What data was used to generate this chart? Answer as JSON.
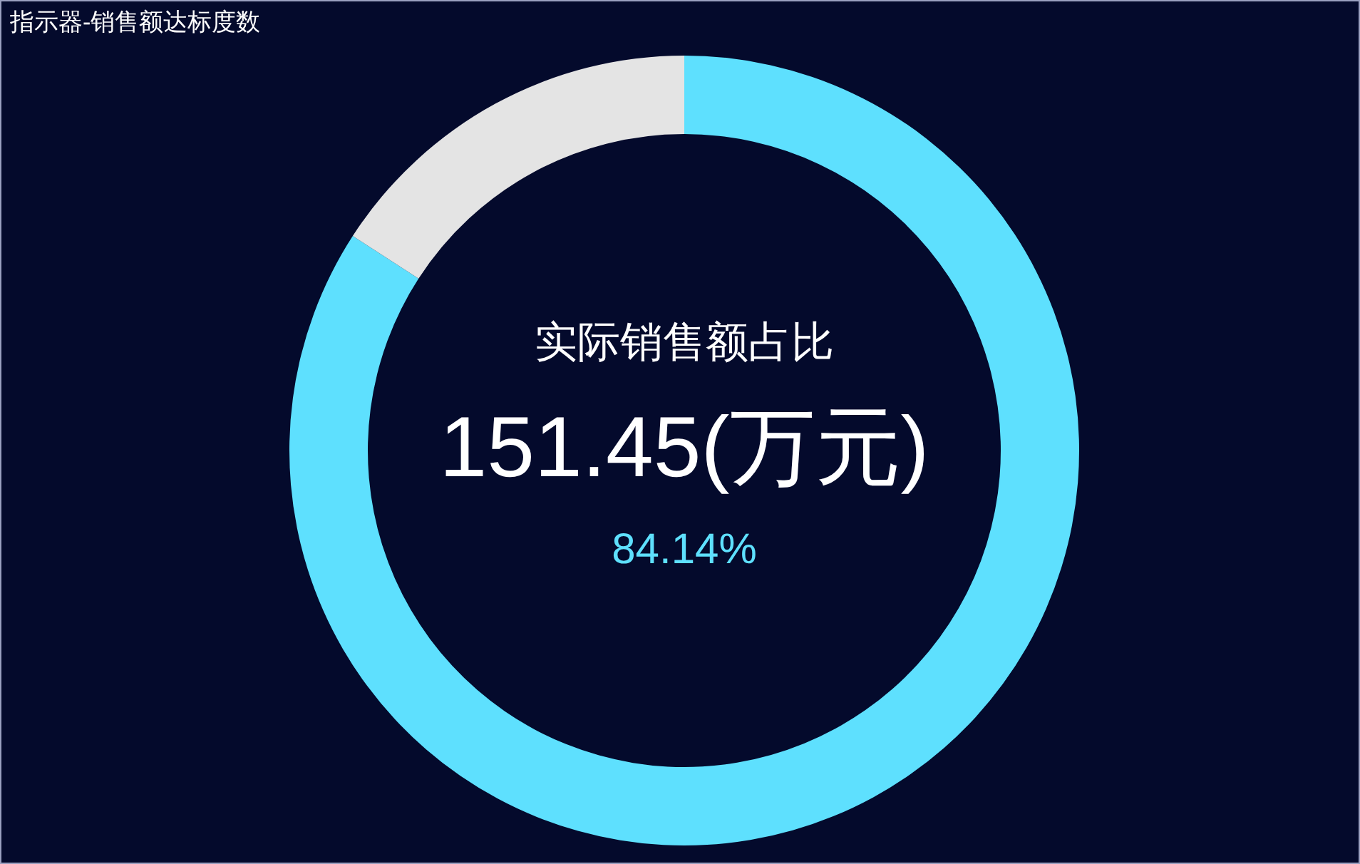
{
  "chart_data": {
    "type": "donut",
    "title": "指示器-销售额达标度数",
    "categories": [
      null,
      null
    ],
    "values": [
      84.14,
      15.86
    ],
    "colors": [
      "#5ee0fe",
      "#e4e4e4"
    ],
    "annotations": [
      "实际销售额占比",
      "151.45(万元)",
      "84.14%"
    ]
  }
}
